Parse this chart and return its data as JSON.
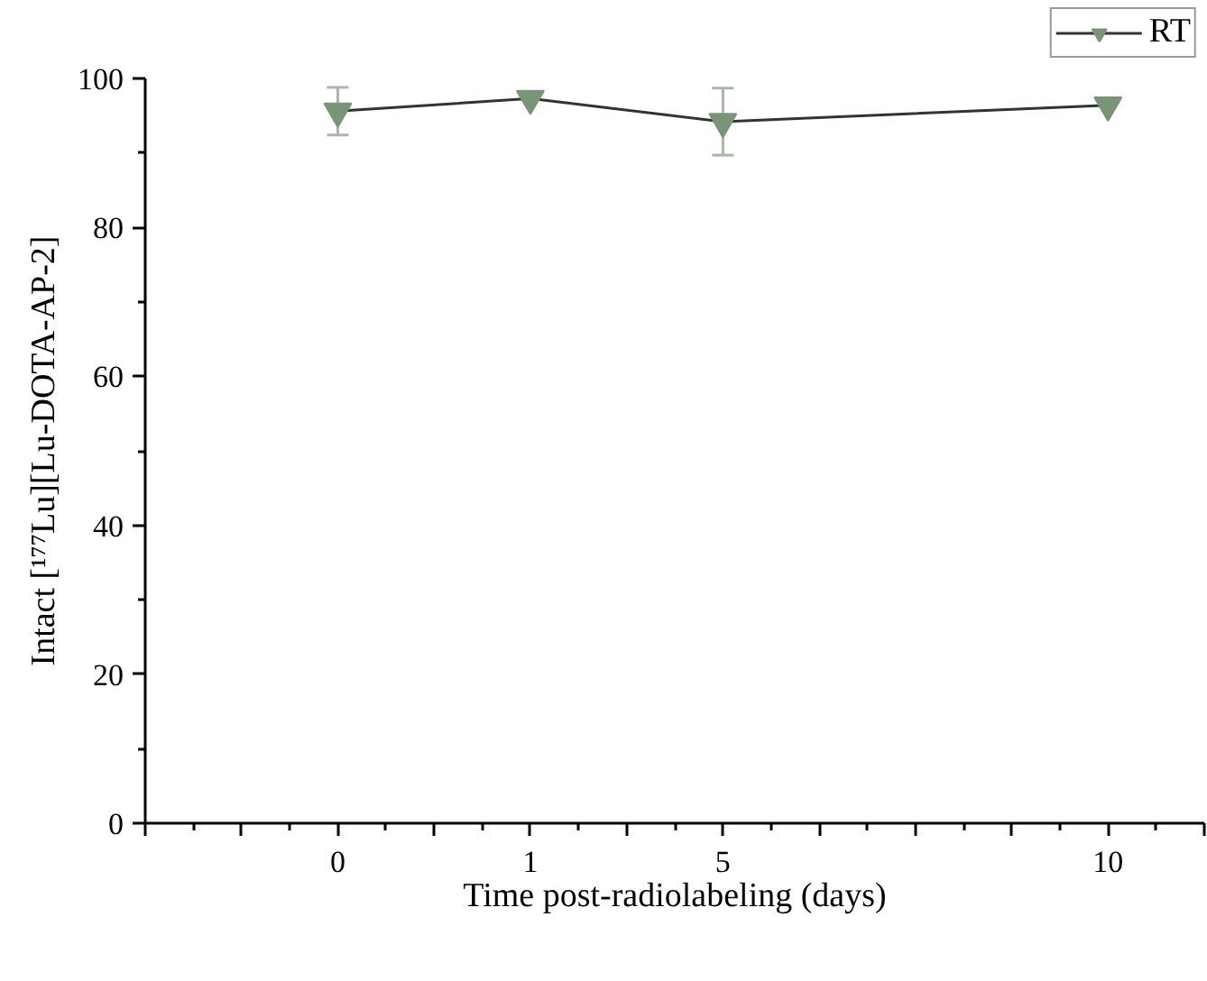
{
  "chart_data": {
    "type": "line",
    "xlabel": "Time post-radiolabeling (days)",
    "ylabel": "Intact [¹⁷⁷Lu][Lu-DOTA-AP-2]",
    "categories": [
      null,
      null,
      "0",
      null,
      "1",
      null,
      "5",
      null,
      null,
      null,
      "10",
      null
    ],
    "series": [
      {
        "name": "RT",
        "color": "#7a9478",
        "values": [
          null,
          null,
          95.6,
          null,
          97.3,
          null,
          94.2,
          null,
          null,
          null,
          96.4,
          null
        ],
        "errors": [
          null,
          null,
          3.2,
          null,
          null,
          null,
          4.5,
          null,
          null,
          null,
          null,
          null
        ]
      }
    ],
    "ylim": [
      0,
      100
    ],
    "yticks": [
      0,
      20,
      40,
      60,
      80,
      100
    ],
    "grid": false,
    "legend": "top right",
    "marker": "triangle_down",
    "line_style": "solid"
  }
}
